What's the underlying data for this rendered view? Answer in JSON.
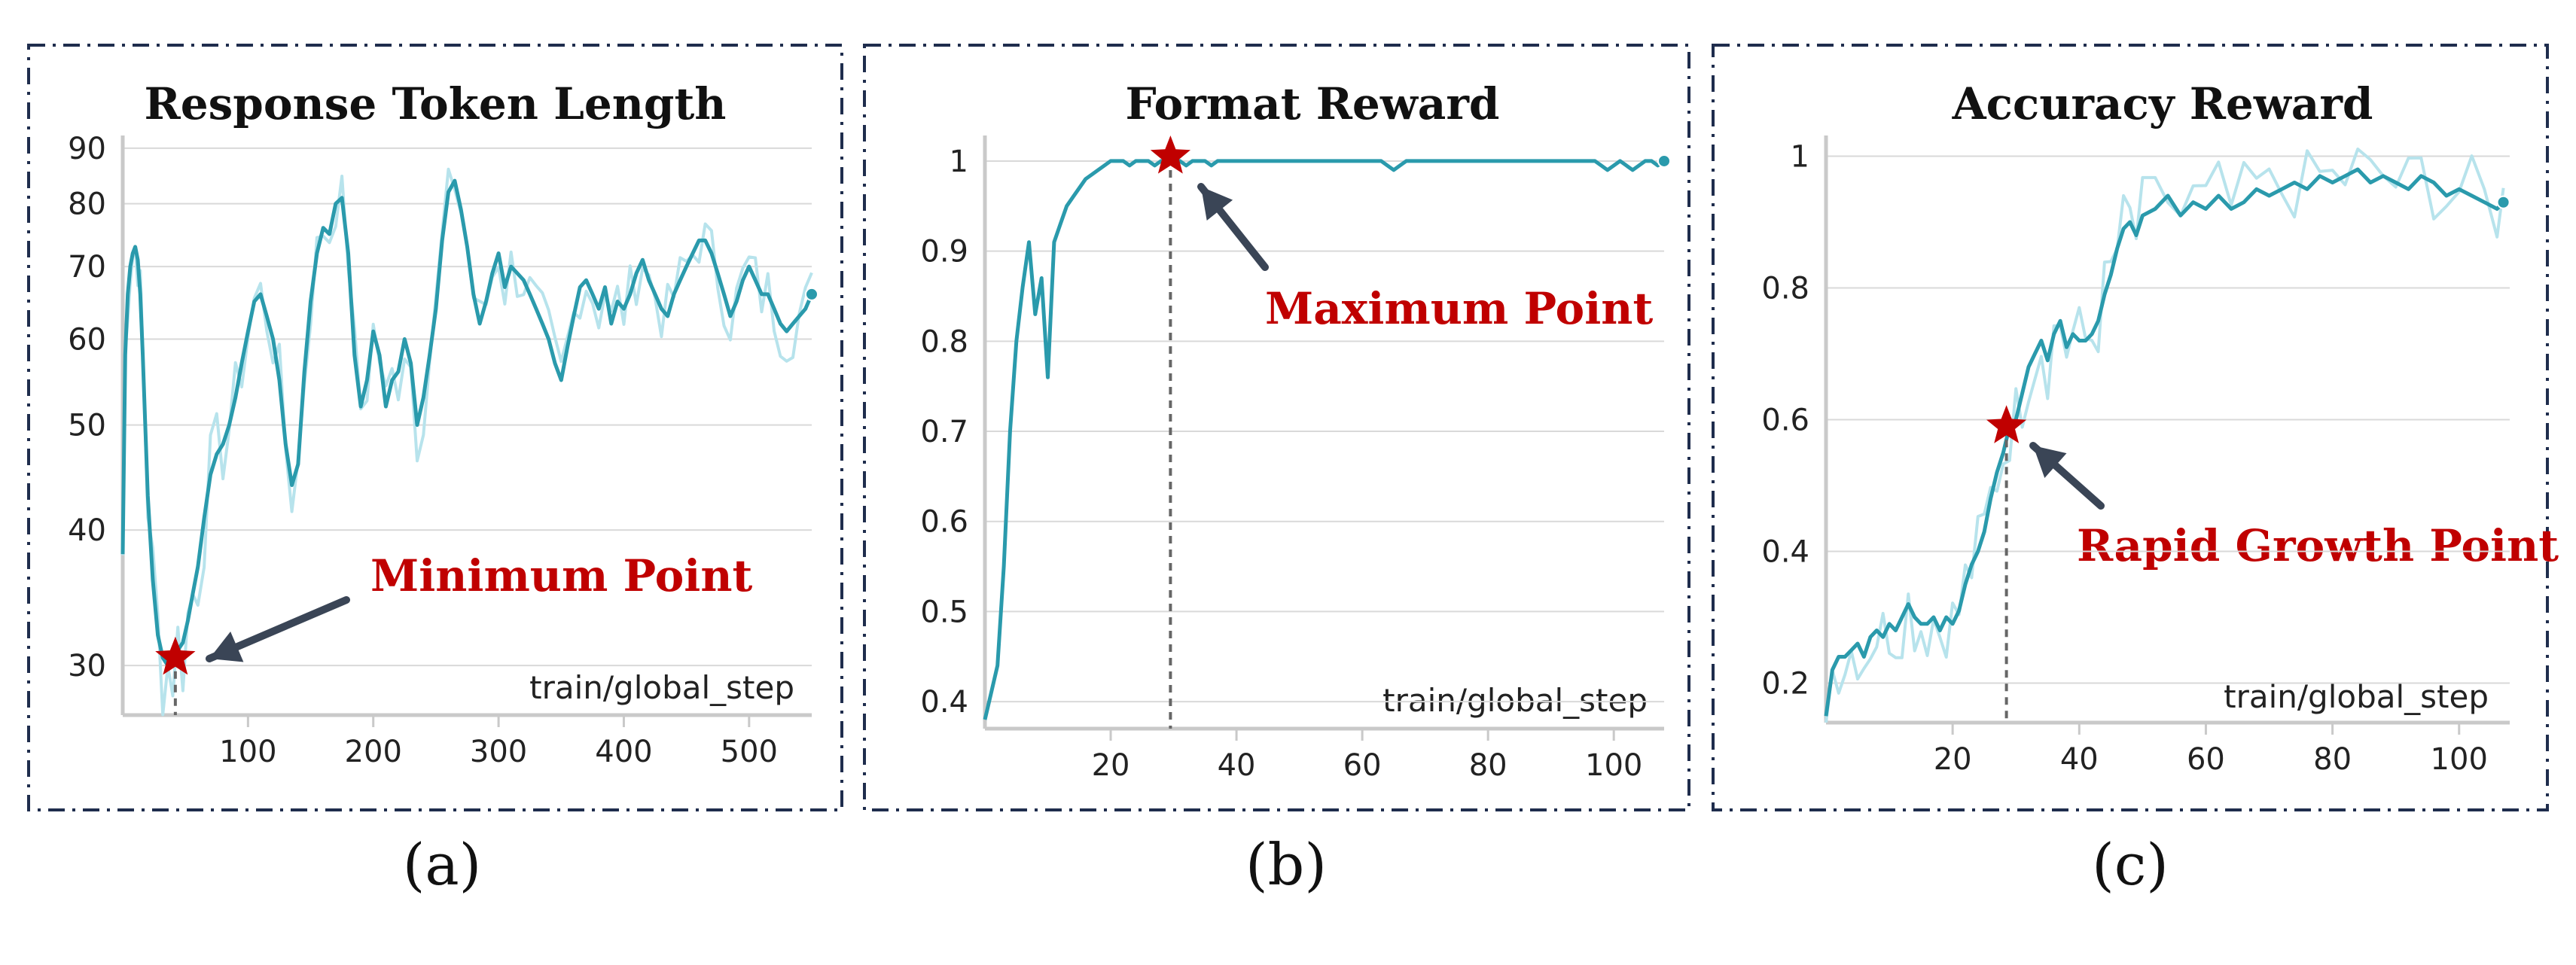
{
  "colors": {
    "line": "#2a9aac",
    "raw": "#b7e3ec",
    "grid": "#d9d9d9",
    "axis": "#c9c9c9",
    "frame": "#1f2d4d",
    "star": "#c00000",
    "annotation": "#c00000",
    "arrow": "#3a4556"
  },
  "chart_data": [
    {
      "type": "line",
      "title": "Response Token Length",
      "xlabel": "train/global_step",
      "ylabel": "",
      "xlim": [
        0,
        550
      ],
      "ylim": [
        27,
        91
      ],
      "yscale": "log",
      "xticks": [
        100,
        200,
        300,
        400,
        500
      ],
      "yticks": [
        30,
        40,
        50,
        60,
        70,
        80,
        90
      ],
      "grid": true,
      "annotation": {
        "text": "Minimum Point",
        "x": 42,
        "y": 30.5
      },
      "subfigure_label": "(a)",
      "series": [
        {
          "x": [
            0,
            2,
            4,
            6,
            8,
            10,
            12,
            14,
            16,
            18,
            20,
            24,
            28,
            32,
            36,
            40,
            44,
            48,
            52,
            56,
            60,
            65,
            70,
            75,
            80,
            85,
            90,
            95,
            100,
            105,
            110,
            115,
            120,
            125,
            130,
            135,
            140,
            145,
            150,
            155,
            160,
            165,
            170,
            175,
            180,
            185,
            190,
            195,
            200,
            205,
            210,
            215,
            220,
            225,
            230,
            235,
            240,
            245,
            250,
            255,
            260,
            265,
            270,
            275,
            280,
            285,
            290,
            295,
            300,
            305,
            310,
            315,
            320,
            325,
            330,
            335,
            340,
            345,
            350,
            355,
            360,
            365,
            370,
            375,
            380,
            385,
            390,
            395,
            400,
            405,
            410,
            415,
            420,
            425,
            430,
            435,
            440,
            445,
            450,
            455,
            460,
            465,
            470,
            475,
            480,
            485,
            490,
            495,
            500,
            505,
            510,
            515,
            520,
            525,
            530,
            535,
            540,
            545,
            550
          ],
          "values": [
            38,
            58,
            66,
            70,
            72,
            73,
            71,
            66,
            58,
            50,
            43,
            36,
            32,
            30.5,
            30,
            30.5,
            31,
            31.5,
            33,
            35,
            37,
            41,
            45,
            47,
            48,
            50,
            53,
            57,
            61,
            65,
            66,
            63,
            60,
            55,
            48,
            44,
            46,
            56,
            65,
            72,
            76,
            75,
            80,
            81,
            72,
            58,
            52,
            55,
            61,
            58,
            52,
            55,
            56,
            60,
            57,
            50,
            53,
            58,
            64,
            74,
            82,
            84,
            79,
            73,
            66,
            62,
            65,
            69,
            72,
            67,
            70,
            69,
            68,
            66,
            64,
            62,
            60,
            57,
            55,
            59,
            63,
            67,
            68,
            66,
            64,
            67,
            62,
            65,
            64,
            66,
            69,
            71,
            68,
            66,
            64,
            63,
            66,
            68,
            70,
            72,
            74,
            74,
            72,
            69,
            66,
            63,
            65,
            68,
            70,
            68,
            66,
            66,
            64,
            62,
            61,
            62,
            63,
            64,
            66
          ]
        }
      ]
    },
    {
      "type": "line",
      "title": "Format Reward",
      "xlabel": "train/global_step",
      "ylabel": "",
      "xlim": [
        0,
        108
      ],
      "ylim": [
        0.37,
        1.02
      ],
      "xticks": [
        20,
        40,
        60,
        80,
        100
      ],
      "yticks": [
        0.4,
        0.5,
        0.6,
        0.7,
        0.8,
        0.9,
        1
      ],
      "grid": true,
      "annotation": {
        "text": "Maximum Point",
        "x": 29.5,
        "y": 1.005
      },
      "subfigure_label": "(b)",
      "series": [
        {
          "x": [
            0,
            1,
            2,
            3,
            4,
            5,
            6,
            7,
            8,
            9,
            10,
            11,
            12,
            13,
            14,
            15,
            16,
            17,
            18,
            19,
            20,
            21,
            22,
            23,
            24,
            25,
            26,
            27,
            28,
            29,
            30,
            31,
            32,
            33,
            34,
            35,
            36,
            37,
            38,
            40,
            45,
            50,
            55,
            60,
            63,
            64,
            65,
            66,
            67,
            68,
            70,
            75,
            80,
            85,
            90,
            95,
            97,
            98,
            99,
            100,
            101,
            102,
            103,
            104,
            105,
            106,
            107,
            108
          ],
          "values": [
            0.38,
            0.41,
            0.44,
            0.55,
            0.7,
            0.8,
            0.86,
            0.91,
            0.83,
            0.87,
            0.76,
            0.91,
            0.93,
            0.95,
            0.96,
            0.97,
            0.98,
            0.985,
            0.99,
            0.995,
            1,
            1,
            1,
            0.995,
            1,
            1,
            1,
            0.995,
            1,
            1,
            1,
            1,
            0.995,
            1,
            1,
            1,
            0.995,
            1,
            1,
            1,
            1,
            1,
            1,
            1,
            1,
            0.995,
            0.99,
            0.995,
            1,
            1,
            1,
            1,
            1,
            1,
            1,
            1,
            1,
            0.995,
            0.99,
            0.995,
            1,
            0.995,
            0.99,
            0.995,
            1,
            1,
            0.995,
            1
          ]
        }
      ]
    },
    {
      "type": "line",
      "title": "Accuracy Reward",
      "xlabel": "train/global_step",
      "ylabel": "",
      "xlim": [
        0,
        108
      ],
      "ylim": [
        0.14,
        1.02
      ],
      "xticks": [
        20,
        40,
        60,
        80,
        100
      ],
      "yticks": [
        0.2,
        0.4,
        0.6,
        0.8,
        1
      ],
      "grid": true,
      "annotation": {
        "text": "Rapid Growth Point",
        "x": 28.5,
        "y": 0.59
      },
      "subfigure_label": "(c)",
      "series": [
        {
          "x": [
            0,
            1,
            2,
            3,
            4,
            5,
            6,
            7,
            8,
            9,
            10,
            11,
            12,
            13,
            14,
            15,
            16,
            17,
            18,
            19,
            20,
            21,
            22,
            23,
            24,
            25,
            26,
            27,
            28,
            29,
            30,
            31,
            32,
            33,
            34,
            35,
            36,
            37,
            38,
            39,
            40,
            41,
            42,
            43,
            44,
            45,
            46,
            47,
            48,
            49,
            50,
            52,
            54,
            56,
            58,
            60,
            62,
            64,
            66,
            68,
            70,
            72,
            74,
            76,
            78,
            80,
            82,
            84,
            86,
            88,
            90,
            92,
            94,
            96,
            98,
            100,
            102,
            104,
            106,
            107
          ],
          "values": [
            0.15,
            0.22,
            0.24,
            0.24,
            0.25,
            0.26,
            0.24,
            0.27,
            0.28,
            0.27,
            0.29,
            0.28,
            0.3,
            0.32,
            0.3,
            0.29,
            0.29,
            0.3,
            0.28,
            0.3,
            0.29,
            0.31,
            0.35,
            0.38,
            0.4,
            0.43,
            0.48,
            0.52,
            0.55,
            0.59,
            0.6,
            0.64,
            0.68,
            0.7,
            0.72,
            0.69,
            0.73,
            0.75,
            0.71,
            0.73,
            0.72,
            0.72,
            0.73,
            0.75,
            0.79,
            0.82,
            0.86,
            0.89,
            0.9,
            0.88,
            0.91,
            0.92,
            0.94,
            0.91,
            0.93,
            0.92,
            0.94,
            0.92,
            0.93,
            0.95,
            0.94,
            0.95,
            0.96,
            0.95,
            0.97,
            0.96,
            0.97,
            0.98,
            0.96,
            0.97,
            0.96,
            0.95,
            0.97,
            0.96,
            0.94,
            0.95,
            0.94,
            0.93,
            0.92,
            0.93
          ]
        }
      ]
    }
  ]
}
